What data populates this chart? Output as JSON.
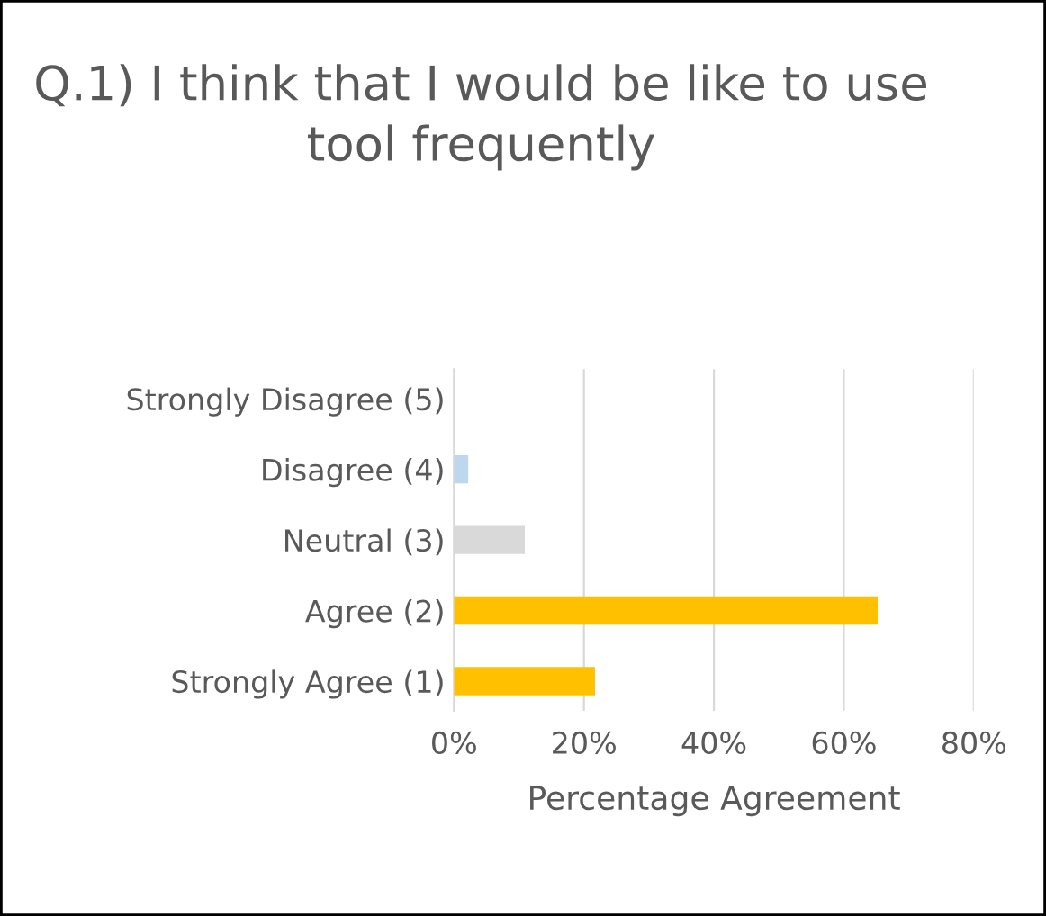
{
  "chart_data": {
    "type": "bar",
    "orientation": "horizontal",
    "title": "Q.1) I think that I would be like to use tool frequently",
    "xlabel": "Percentage Agreement",
    "categories": [
      "Strongly Disagree (5)",
      "Disagree (4)",
      "Neutral (3)",
      "Agree (2)",
      "Strongly Agree (1)"
    ],
    "values": [
      0,
      2.2,
      10.9,
      65.2,
      21.7
    ],
    "colors": [
      "#bdd7ee",
      "#bdd7ee",
      "#d9d9d9",
      "#ffc000",
      "#ffc000"
    ],
    "xlim": [
      0,
      80
    ],
    "xticks": [
      {
        "value": 0,
        "label": "0%"
      },
      {
        "value": 20,
        "label": "20%"
      },
      {
        "value": 40,
        "label": "40%"
      },
      {
        "value": 60,
        "label": "60%"
      },
      {
        "value": 80,
        "label": "80%"
      }
    ],
    "grid": "x",
    "legend": false
  }
}
